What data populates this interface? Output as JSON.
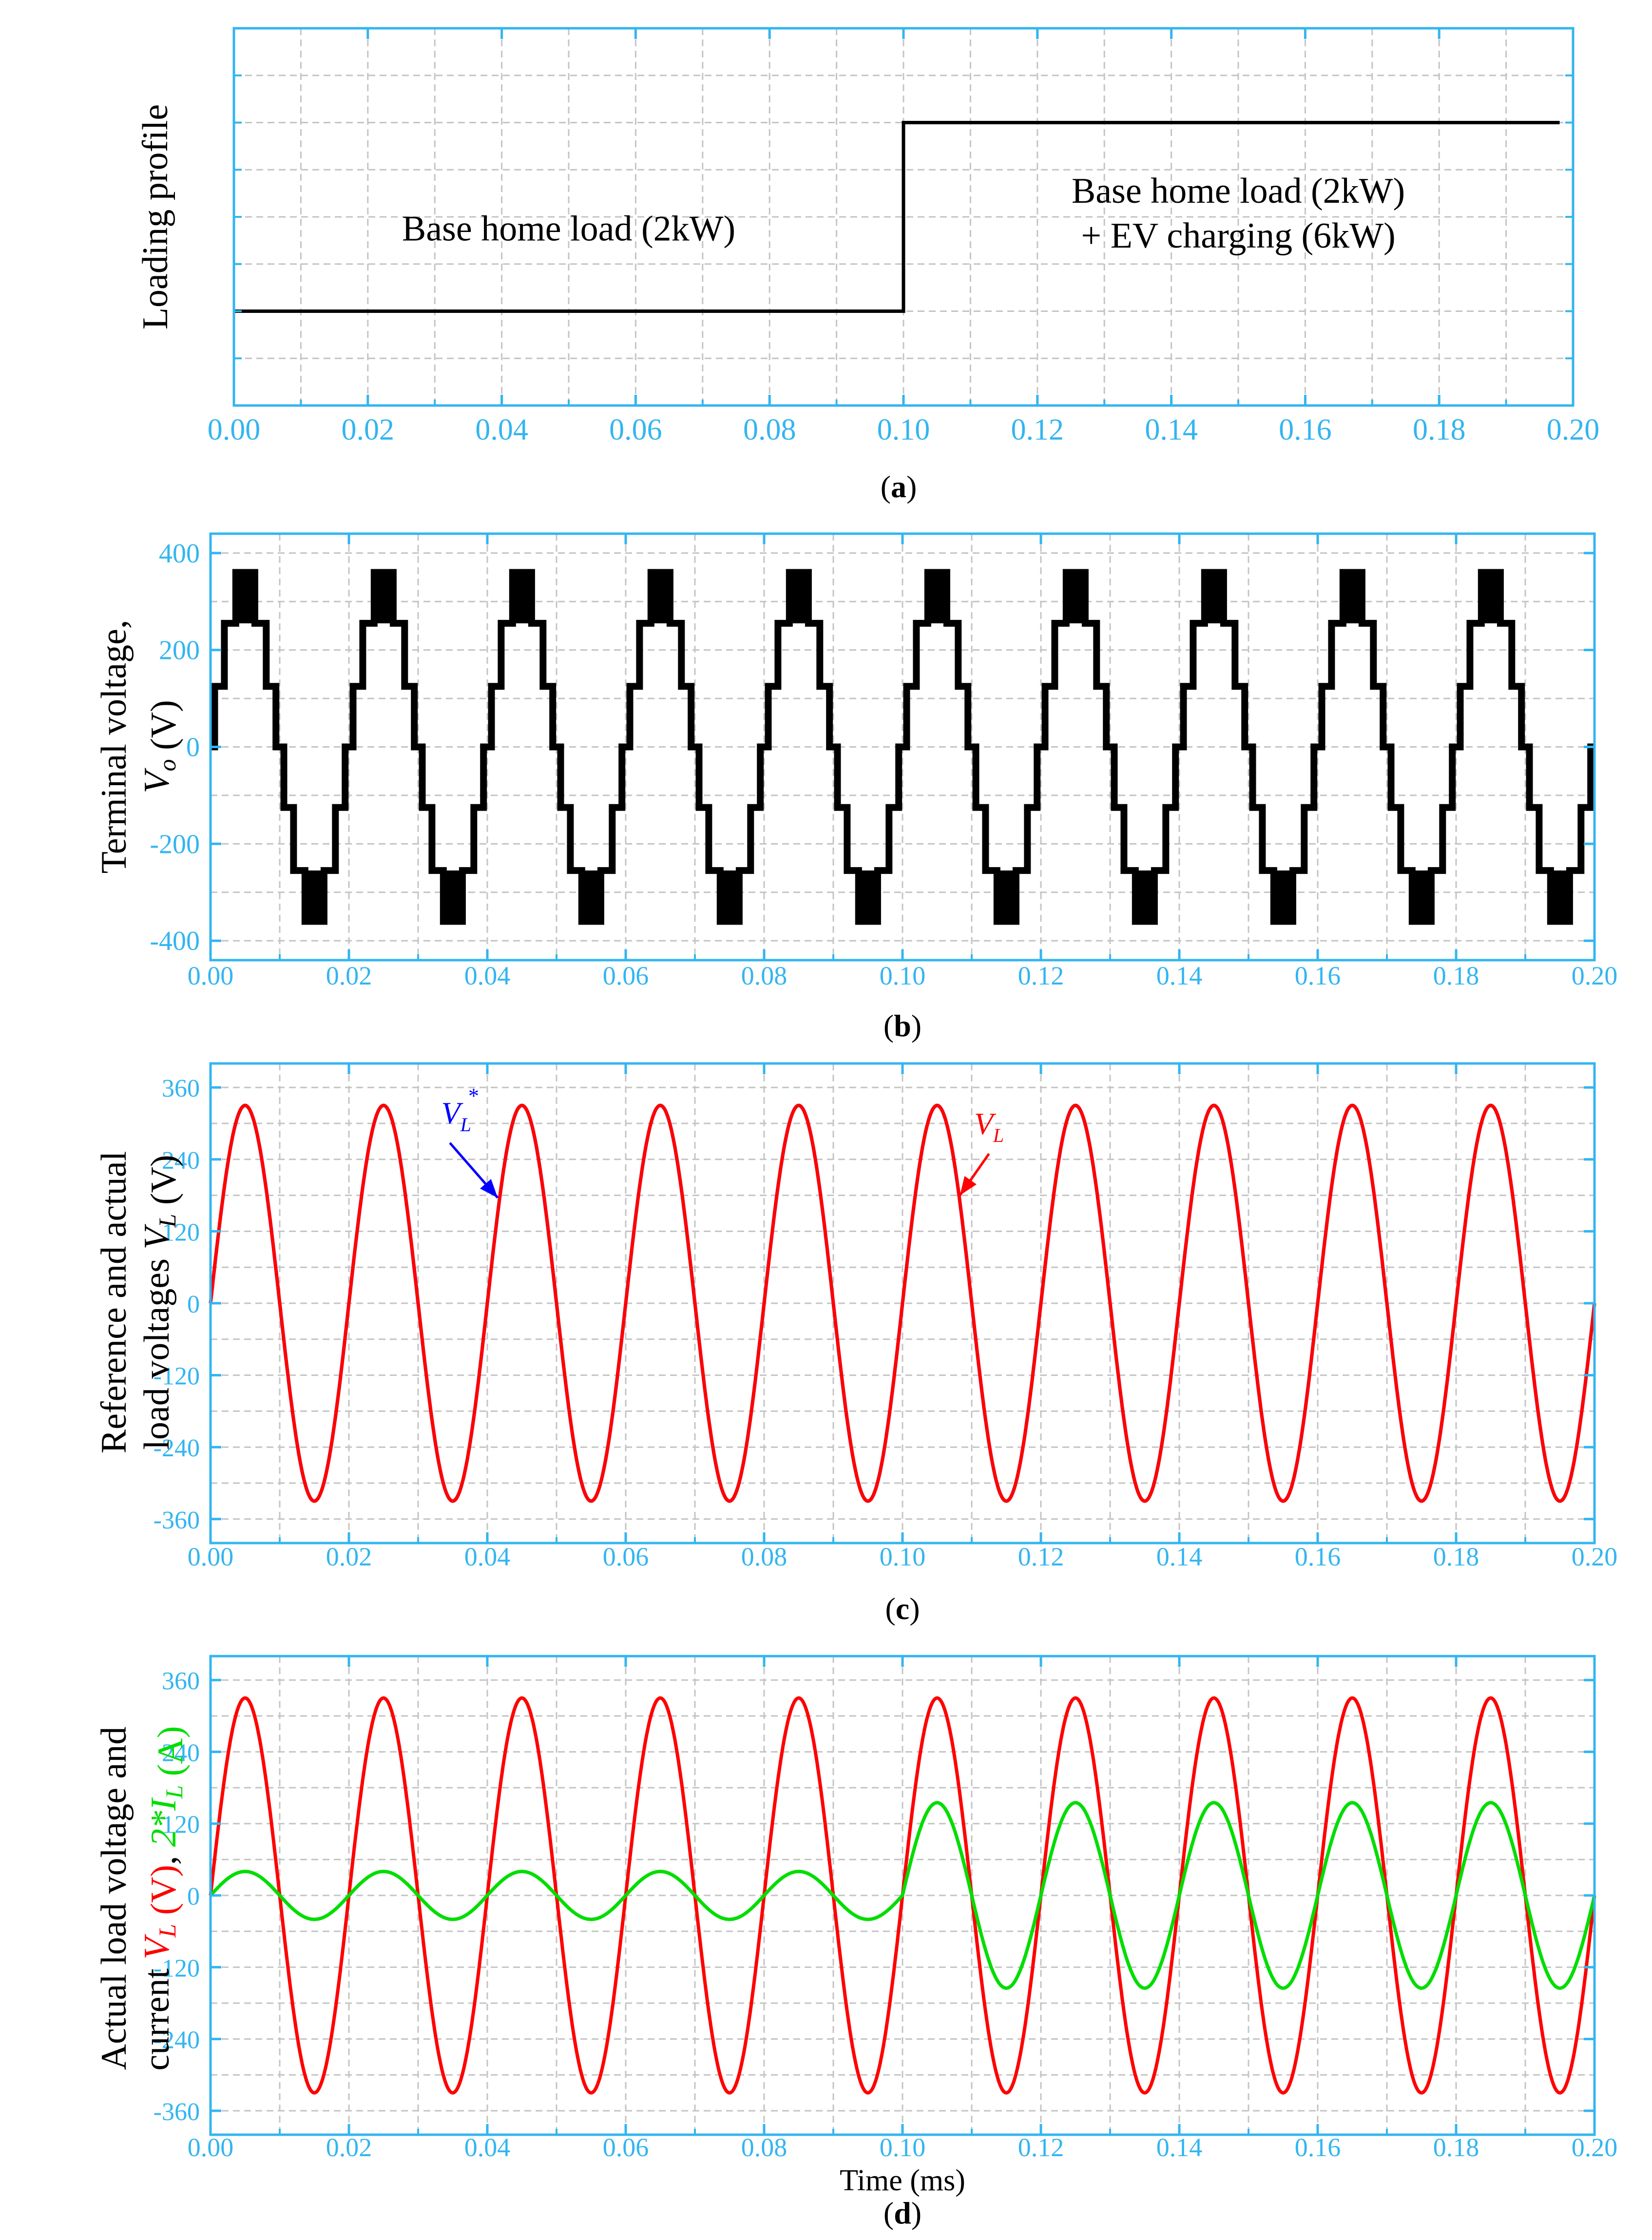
{
  "figure": {
    "panels": [
      {
        "id": "a",
        "caption": "a",
        "ylabel_parts": [
          {
            "text": "Loading profile",
            "color": "#000000"
          }
        ],
        "xlabel": ""
      },
      {
        "id": "b",
        "caption": "b",
        "ylabel_parts": [
          {
            "text": "Terminal voltage,",
            "color": "#000000"
          },
          {
            "text": "V",
            "color": "#000000",
            "italic": true,
            "line": 2
          },
          {
            "text": "o",
            "color": "#000000",
            "italic": true,
            "sub": true,
            "line": 2
          },
          {
            "text": " (V)",
            "color": "#000000",
            "line": 2
          }
        ],
        "xlabel": ""
      },
      {
        "id": "c",
        "caption": "c",
        "ylabel_parts": [
          {
            "text": "Reference and actual",
            "color": "#000000"
          },
          {
            "text": "load voltages ",
            "color": "#000000",
            "line": 2
          },
          {
            "text": "V",
            "color": "#000000",
            "italic": true,
            "line": 2
          },
          {
            "text": "L",
            "color": "#000000",
            "italic": true,
            "sub": true,
            "line": 2
          },
          {
            "text": " (V)",
            "color": "#000000",
            "line": 2
          }
        ],
        "xlabel": ""
      },
      {
        "id": "d",
        "caption": "d",
        "ylabel_parts": [
          {
            "text": "Actual load voltage and",
            "color": "#000000"
          },
          {
            "text": "current ",
            "color": "#000000",
            "line": 2
          },
          {
            "text": "V",
            "color": "#ff0000",
            "italic": true,
            "line": 2
          },
          {
            "text": "L",
            "color": "#ff0000",
            "italic": true,
            "sub": true,
            "line": 2
          },
          {
            "text": " (V)",
            "color": "#ff0000",
            "line": 2
          },
          {
            "text": ", ",
            "color": "#000000",
            "line": 2
          },
          {
            "text": "2*I",
            "color": "#00dd00",
            "italic": true,
            "line": 2
          },
          {
            "text": "L",
            "color": "#00dd00",
            "italic": true,
            "sub": true,
            "line": 2
          },
          {
            "text": " (A)",
            "color": "#00dd00",
            "line": 2
          }
        ],
        "xlabel": "Time (ms)"
      }
    ]
  },
  "chart_data": [
    {
      "type": "line",
      "panel": "a",
      "title": "",
      "xlabel": "",
      "ylabel": "Loading profile",
      "xlim": [
        0,
        0.2
      ],
      "xticks": [
        "0.00",
        "0.02",
        "0.04",
        "0.06",
        "0.08",
        "0.10",
        "0.12",
        "0.14",
        "0.16",
        "0.18",
        "0.20"
      ],
      "yticks": [],
      "ylim": [
        0,
        4
      ],
      "grid": true,
      "series": [
        {
          "color": "#000000",
          "x": [
            0,
            0.1,
            0.1,
            0.198
          ],
          "y": [
            1,
            1,
            3,
            3
          ]
        }
      ],
      "annotations": [
        {
          "lines": [
            "Base home load (2kW)"
          ],
          "x": 0.05,
          "y": 1.75
        },
        {
          "lines": [
            "Base home load (2kW)",
            "+ EV charging (6kW)"
          ],
          "x": 0.15,
          "y": 2.15
        }
      ]
    },
    {
      "type": "line",
      "panel": "b",
      "title": "",
      "xlabel": "",
      "ylabel": "Terminal voltage, Vo (V)",
      "xlim": [
        0,
        0.2
      ],
      "ylim": [
        -440,
        440
      ],
      "xticks": [
        "0.00",
        "0.02",
        "0.04",
        "0.06",
        "0.08",
        "0.10",
        "0.12",
        "0.14",
        "0.16",
        "0.18",
        "0.20"
      ],
      "yticks": [
        {
          "v": 400,
          "label": "400"
        },
        {
          "v": 200,
          "label": "200"
        },
        {
          "v": 0,
          "label": "0"
        },
        {
          "v": -200,
          "label": "-200"
        },
        {
          "v": -400,
          "label": "-400"
        }
      ],
      "grid": true,
      "series": [
        {
          "name": "",
          "color": "#000000",
          "kind": "staircase_sine",
          "amplitude": 330,
          "frequency_hz": 50,
          "levels": [
            0,
            125,
            255,
            360
          ],
          "pwm_band": [
            255,
            360
          ]
        }
      ]
    },
    {
      "type": "line",
      "panel": "c",
      "title": "",
      "xlabel": "",
      "ylabel": "Reference and actual load voltages VL (V)",
      "xlim": [
        0,
        0.2
      ],
      "ylim": [
        -400,
        400
      ],
      "xticks": [
        "0.00",
        "0.02",
        "0.04",
        "0.06",
        "0.08",
        "0.10",
        "0.12",
        "0.14",
        "0.16",
        "0.18",
        "0.20"
      ],
      "yticks": [
        {
          "v": 360,
          "label": "360"
        },
        {
          "v": 240,
          "label": "240"
        },
        {
          "v": 120,
          "label": "120"
        },
        {
          "v": 0,
          "label": "0"
        },
        {
          "v": -120,
          "label": "-120"
        },
        {
          "v": -240,
          "label": "-240"
        },
        {
          "v": -360,
          "label": "-360"
        }
      ],
      "grid": true,
      "series": [
        {
          "name": "VL*",
          "color": "#0000ff",
          "kind": "sine",
          "amplitude": 330,
          "frequency_hz": 50,
          "phase": 0
        },
        {
          "name": "VL",
          "color": "#ff0000",
          "kind": "sine",
          "amplitude": 330,
          "frequency_hz": 50,
          "phase": 0
        }
      ],
      "annotations": [
        {
          "label_main": "V",
          "label_sub": "L",
          "label_sup": "*",
          "color": "#0000ff",
          "text_x": 0.036,
          "text_y": 300,
          "arrow_to_x": 0.0415,
          "arrow_to_y": 176
        },
        {
          "label_main": "V",
          "label_sub": "L",
          "label_sup": "",
          "color": "#ff0000",
          "text_x": 0.1125,
          "text_y": 282,
          "arrow_to_x": 0.1083,
          "arrow_to_y": 180
        }
      ]
    },
    {
      "type": "line",
      "panel": "d",
      "title": "",
      "xlabel": "Time (ms)",
      "ylabel": "Actual load voltage and current VL (V), 2*IL (A)",
      "xlim": [
        0,
        0.2
      ],
      "ylim": [
        -400,
        400
      ],
      "xticks": [
        "0.00",
        "0.02",
        "0.04",
        "0.06",
        "0.08",
        "0.10",
        "0.12",
        "0.14",
        "0.16",
        "0.18",
        "0.20"
      ],
      "yticks": [
        {
          "v": 360,
          "label": "360"
        },
        {
          "v": 240,
          "label": "240"
        },
        {
          "v": 120,
          "label": "120"
        },
        {
          "v": 0,
          "label": "0"
        },
        {
          "v": -120,
          "label": "-120"
        },
        {
          "v": -240,
          "label": "-240"
        },
        {
          "v": -360,
          "label": "-360"
        }
      ],
      "grid": true,
      "series": [
        {
          "name": "VL",
          "color": "#ff0000",
          "kind": "sine",
          "amplitude": 330,
          "frequency_hz": 50,
          "phase": 0
        },
        {
          "name": "2*IL",
          "color": "#00dd00",
          "kind": "sine_step",
          "amplitude_before": 40,
          "amplitude_after": 155,
          "step_time": 0.1,
          "frequency_hz": 50,
          "phase": 0
        }
      ]
    }
  ]
}
